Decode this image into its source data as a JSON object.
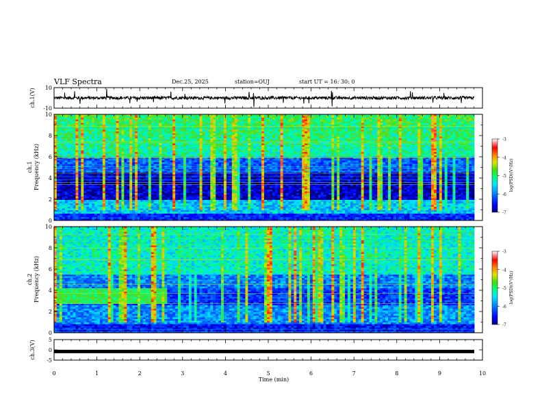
{
  "header": {
    "title": "VLF Spectra",
    "date": "Dec.25, 2025",
    "station": "station=OUJ",
    "start": "start  UT  =   16: 30: 0"
  },
  "colors": {
    "spectrogram_scale": [
      "#0000a0",
      "#0000ff",
      "#0080ff",
      "#00c8ff",
      "#00ffb0",
      "#20e060",
      "#a0e000",
      "#ffff00",
      "#ff9000",
      "#ff0000",
      "#ffc0c0",
      "#ffffff"
    ],
    "trace": "#000000"
  },
  "chart_data": [
    {
      "type": "line",
      "panel": "ch1-waveform",
      "ylabel": "ch.1(V)",
      "ylim": [
        -10,
        10
      ],
      "yticks": [
        "10",
        "-10"
      ],
      "xlim": [
        0,
        10
      ],
      "description_values": {
        "baseline": 0,
        "typical_amplitude": 1.5,
        "spike_max": 9
      }
    },
    {
      "type": "heatmap",
      "panel": "ch1-spectrogram",
      "ylabel": "Frequency (kHz)",
      "channel_label": "ch.1",
      "ylim": [
        0,
        10
      ],
      "yticks": [
        "0",
        "2",
        "4",
        "6",
        "8",
        "10"
      ],
      "xlim": [
        0,
        10
      ],
      "colorbar": {
        "label": "log(PSD)(V²/Hz)",
        "range": [
          -7,
          -3
        ],
        "ticks": [
          "-3",
          "-4",
          "-5",
          "-6",
          "-7"
        ]
      }
    },
    {
      "type": "heatmap",
      "panel": "ch2-spectrogram",
      "ylabel": "Frequency (kHz)",
      "channel_label": "ch.2",
      "ylim": [
        0,
        10
      ],
      "yticks": [
        "0",
        "2",
        "4",
        "6",
        "8",
        "10"
      ],
      "xlim": [
        0,
        10
      ],
      "colorbar": {
        "label": "log(PSD)(V²/Hz)",
        "range": [
          -7,
          -3
        ],
        "ticks": [
          "-3",
          "-4",
          "-5",
          "-6",
          "-7"
        ]
      }
    },
    {
      "type": "line",
      "panel": "ch3-waveform",
      "ylabel": "ch.3(V)",
      "ylim": [
        -5,
        5
      ],
      "yticks": [
        "5",
        "0",
        "-5"
      ],
      "xlim": [
        0,
        10
      ],
      "description_values": {
        "constant_value": -0.8
      }
    }
  ],
  "xaxis": {
    "label": "Time (min)",
    "ticks": [
      "0",
      "1",
      "2",
      "3",
      "4",
      "5",
      "6",
      "7",
      "8",
      "9",
      "10"
    ]
  }
}
